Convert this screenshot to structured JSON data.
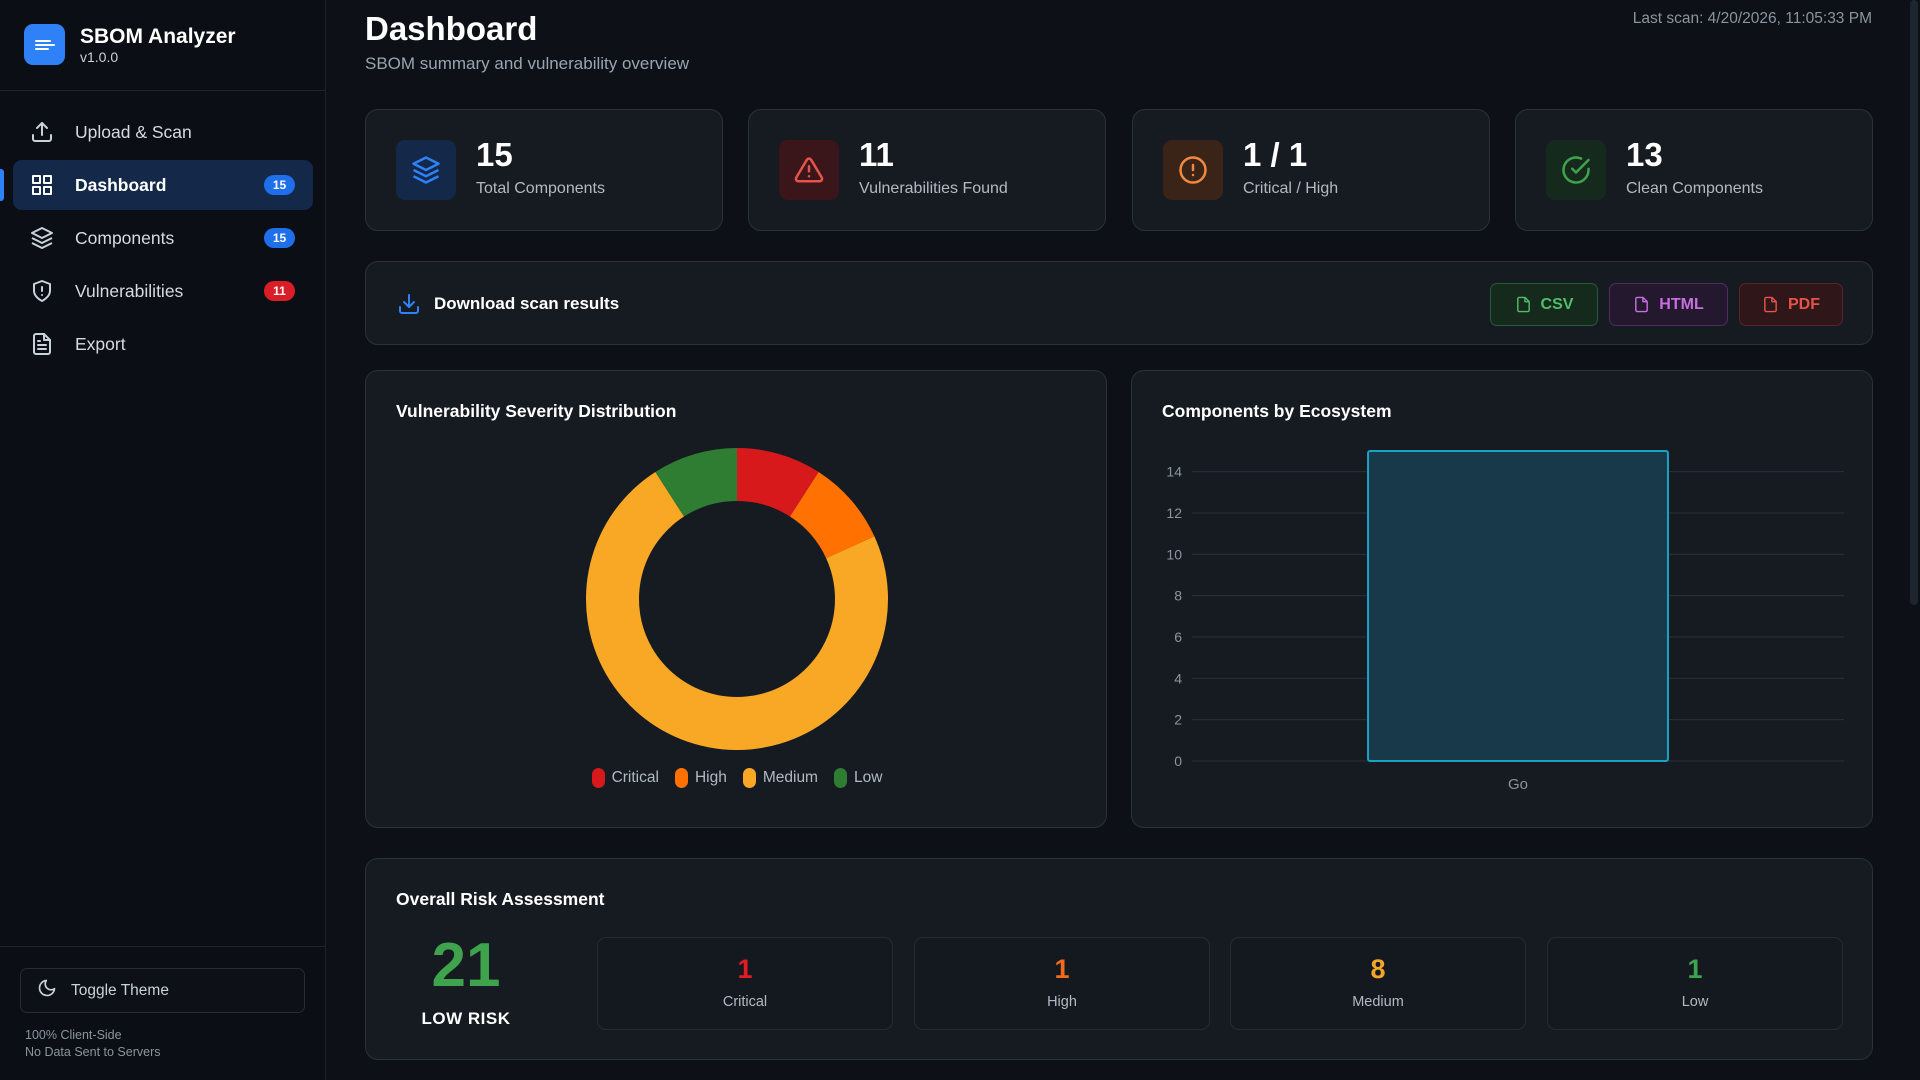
{
  "sidebar": {
    "app_name": "SBOM Analyzer",
    "version": "v1.0.0",
    "items": [
      {
        "label": "Upload & Scan",
        "icon": "upload-icon",
        "badge": ""
      },
      {
        "label": "Dashboard",
        "icon": "grid-icon",
        "badge": "15",
        "active": true
      },
      {
        "label": "Components",
        "icon": "layers-icon",
        "badge": "15"
      },
      {
        "label": "Vulnerabilities",
        "icon": "shield-icon",
        "badge": "11"
      },
      {
        "label": "Export",
        "icon": "document-icon",
        "badge": ""
      }
    ],
    "toggle_theme": "Toggle Theme",
    "privacy_line1": "100% Client-Side",
    "privacy_line2": "No Data Sent to Servers"
  },
  "header": {
    "title": "Dashboard",
    "subtitle": "SBOM summary and vulnerability overview",
    "last_scan": "Last scan: 4/20/2026, 11:05:33 PM"
  },
  "stats": [
    {
      "value": "15",
      "label": "Total Components",
      "icon": "layers-icon",
      "color": "#2f81f7"
    },
    {
      "value": "11",
      "label": "Vulnerabilities Found",
      "icon": "alert-triangle-icon",
      "color": "#e5534b"
    },
    {
      "value": "1 / 1",
      "label": "Critical / High",
      "icon": "alert-circle-icon",
      "color": "#f0883e"
    },
    {
      "value": "13",
      "label": "Clean Components",
      "icon": "check-circle-icon",
      "color": "#3fa34d"
    }
  ],
  "download": {
    "title": "Download scan results",
    "csv": "CSV",
    "html": "HTML",
    "pdf": "PDF"
  },
  "severity_chart": {
    "title": "Vulnerability Severity Distribution"
  },
  "ecosystem_chart": {
    "title": "Components by Ecosystem"
  },
  "chart_data": [
    {
      "type": "pie",
      "title": "Vulnerability Severity Distribution",
      "donut": true,
      "categories": [
        "Critical",
        "High",
        "Medium",
        "Low"
      ],
      "values": [
        1,
        1,
        8,
        1
      ],
      "colors": [
        "#d7191c",
        "#ff7100",
        "#f9a825",
        "#2e7d32"
      ],
      "legend": "bottom"
    },
    {
      "type": "bar",
      "title": "Components by Ecosystem",
      "categories": [
        "Go"
      ],
      "values": [
        15
      ],
      "ylim": [
        0,
        15
      ],
      "yticks": [
        0,
        2,
        4,
        6,
        8,
        10,
        12,
        14
      ],
      "grid": true,
      "bar_color": "#1ba1c4"
    }
  ],
  "risk": {
    "title": "Overall Risk Assessment",
    "score": "21",
    "level": "LOW RISK",
    "boxes": [
      {
        "value": "1",
        "label": "Critical",
        "color": "#e31b23"
      },
      {
        "value": "1",
        "label": "High",
        "color": "#f26b1d"
      },
      {
        "value": "8",
        "label": "Medium",
        "color": "#f4a62a"
      },
      {
        "value": "1",
        "label": "Low",
        "color": "#3fa34d"
      }
    ]
  }
}
